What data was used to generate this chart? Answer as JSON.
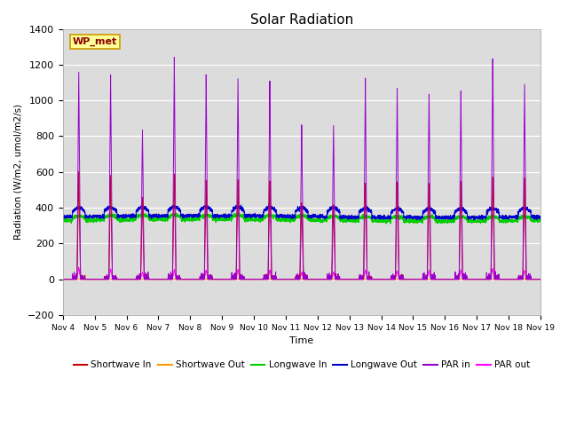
{
  "title": "Solar Radiation",
  "ylabel": "Radiation (W/m2, umol/m2/s)",
  "xlabel": "Time",
  "annotation": "WP_met",
  "ylim": [
    -200,
    1400
  ],
  "yticks": [
    -200,
    0,
    200,
    400,
    600,
    800,
    1000,
    1200,
    1400
  ],
  "background_color": "#dcdcdc",
  "series": {
    "shortwave_in": {
      "color": "#cc0000",
      "label": "Shortwave In"
    },
    "shortwave_out": {
      "color": "#ff9900",
      "label": "Shortwave Out"
    },
    "longwave_in": {
      "color": "#00cc00",
      "label": "Longwave In"
    },
    "longwave_out": {
      "color": "#0000cc",
      "label": "Longwave Out"
    },
    "par_in": {
      "color": "#9900cc",
      "label": "PAR in"
    },
    "par_out": {
      "color": "#ff00ff",
      "label": "PAR out"
    }
  },
  "n_days": 15,
  "points_per_day": 288,
  "par_in_peaks": [
    1150,
    1150,
    850,
    1230,
    1120,
    1130,
    1110,
    870,
    850,
    1110,
    1060,
    1060,
    1050,
    1230,
    1080
  ],
  "sw_in_peaks": [
    600,
    580,
    460,
    600,
    540,
    570,
    555,
    440,
    430,
    550,
    540,
    535,
    545,
    575,
    555
  ],
  "par_out_peaks": [
    65,
    60,
    40,
    55,
    50,
    55,
    50,
    40,
    40,
    55,
    50,
    50,
    50,
    60,
    50
  ],
  "lw_in_base": 330,
  "lw_out_base": 350
}
